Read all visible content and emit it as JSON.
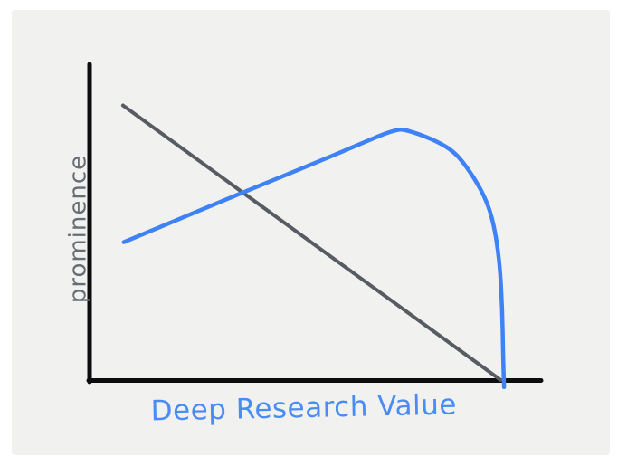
{
  "canvas": {
    "page_background": "#ffffff",
    "sketch_background": "#f1f1f0"
  },
  "chart_data": {
    "type": "line",
    "style": "hand-drawn sketch, no ticks, no gridlines, no legend",
    "title": "",
    "xlabel": "Deep Research Value",
    "ylabel": "prominence",
    "axis_color": "#0d0d0f",
    "grid": false,
    "legend": "none",
    "x_axis": {
      "range": [
        0,
        1
      ],
      "ticks": [],
      "label_color": "#4a8cf5"
    },
    "y_axis": {
      "range": [
        0,
        1
      ],
      "ticks": [],
      "label_color": "#686c75"
    },
    "series": [
      {
        "name": "gray-declining-line",
        "description": "straight line falling from upper-left to x-axis at lower-right",
        "color": "#575b62",
        "stroke_width": 4,
        "shape": "straight-line",
        "points": [
          [
            0.074,
            0.871
          ],
          [
            0.91,
            0.002
          ]
        ]
      },
      {
        "name": "blue-rise-then-collapse-curve",
        "description": "rises linearly to a peak around x=0.68, then bends down and plunges vertically to zero at x=0.92",
        "color": "#3e82f6",
        "stroke_width": 4.5,
        "shape": "freehand-curve",
        "points": [
          [
            0.076,
            0.438
          ],
          [
            0.18,
            0.5
          ],
          [
            0.283,
            0.562
          ],
          [
            0.383,
            0.621
          ],
          [
            0.483,
            0.679
          ],
          [
            0.58,
            0.737
          ],
          [
            0.679,
            0.797
          ],
          [
            0.708,
            0.791
          ],
          [
            0.768,
            0.759
          ],
          [
            0.81,
            0.722
          ],
          [
            0.844,
            0.659
          ],
          [
            0.874,
            0.587
          ],
          [
            0.894,
            0.507
          ],
          [
            0.908,
            0.381
          ],
          [
            0.914,
            0.229
          ],
          [
            0.916,
            0.072
          ],
          [
            0.918,
            -0.021
          ]
        ]
      }
    ]
  }
}
